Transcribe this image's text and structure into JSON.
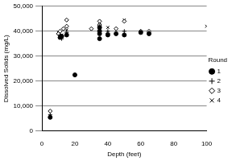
{
  "chart_data": {
    "type": "scatter",
    "x_label": "Depth (feet)",
    "y_label": "Dissolved Solids (mg/L)",
    "legend_title": "Round",
    "series": [
      {
        "name": "1",
        "color": "#000000",
        "marker": "filled_circle",
        "x": [
          5,
          11,
          12,
          15,
          20,
          35,
          35,
          35,
          35,
          40,
          45,
          50,
          60,
          65
        ],
        "values": [
          5500,
          37500,
          38000,
          38500,
          22500,
          37000,
          39000,
          40000,
          41500,
          38500,
          39000,
          38500,
          39500,
          39000
        ]
      },
      {
        "name": "2",
        "color": "#000000",
        "marker": "plus",
        "x": [
          5,
          11,
          12,
          15,
          35,
          35,
          40,
          50,
          65
        ],
        "values": [
          6500,
          38500,
          37000,
          39500,
          42000,
          40500,
          40000,
          40000,
          39500
        ]
      },
      {
        "name": "3",
        "color": "#000000",
        "marker": "open_diamond",
        "x": [
          5,
          10,
          11,
          13,
          15,
          15,
          30,
          35,
          35,
          40,
          45,
          50,
          60,
          65
        ],
        "values": [
          8000,
          39000,
          40000,
          41000,
          42000,
          44500,
          41000,
          44000,
          42500,
          39000,
          41000,
          44000,
          40000,
          40000
        ]
      },
      {
        "name": "4",
        "color": "#000000",
        "marker": "x",
        "x": [
          10,
          12,
          15,
          35,
          40,
          50,
          60,
          100
        ],
        "values": [
          39500,
          38500,
          40500,
          43500,
          41500,
          44500,
          39500,
          42000
        ]
      }
    ],
    "xlim": [
      0,
      100
    ],
    "xticks": [
      0,
      20,
      40,
      60,
      80,
      100
    ],
    "ylim": [
      0,
      50000
    ],
    "yticks": [
      0,
      10000,
      20000,
      30000,
      40000,
      50000
    ],
    "grid": true,
    "legend": "right"
  }
}
